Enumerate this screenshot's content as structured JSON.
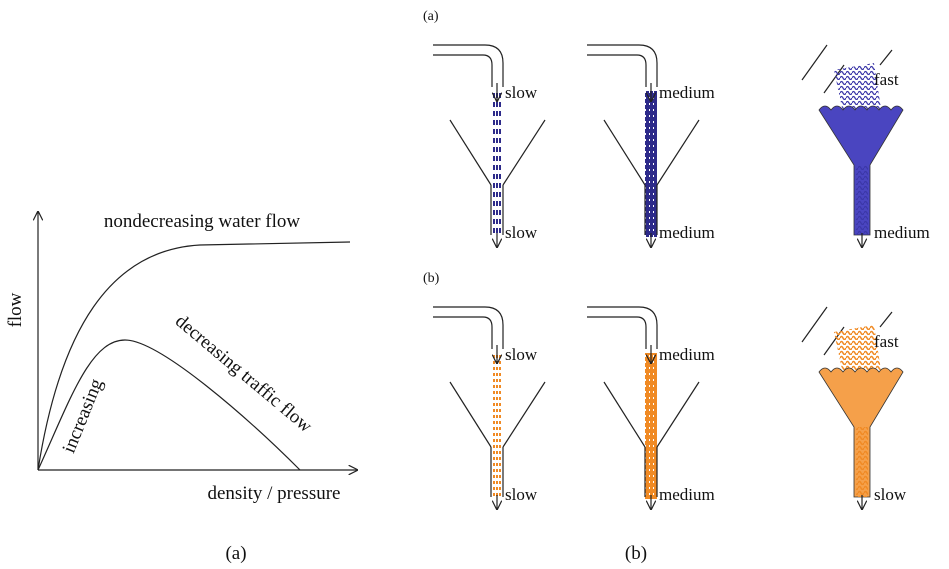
{
  "left_panel": {
    "y_label": "flow",
    "x_label": "density / pressure",
    "water_curve_label": "nondecreasing water flow",
    "traffic_rising_label": "increasing",
    "traffic_falling_label": "decreasing traffic flow",
    "caption": "(a)"
  },
  "right_panel": {
    "caption": "(b)",
    "rows": [
      {
        "label": "(a)",
        "funnels": [
          {
            "top": "slow",
            "bottom": "slow"
          },
          {
            "top": "medium",
            "bottom": "medium"
          },
          {
            "top": "fast",
            "bottom": "medium"
          }
        ]
      },
      {
        "label": "(b)",
        "funnels": [
          {
            "top": "slow",
            "bottom": "slow"
          },
          {
            "top": "medium",
            "bottom": "medium"
          },
          {
            "top": "fast",
            "bottom": "slow"
          }
        ]
      }
    ]
  }
}
